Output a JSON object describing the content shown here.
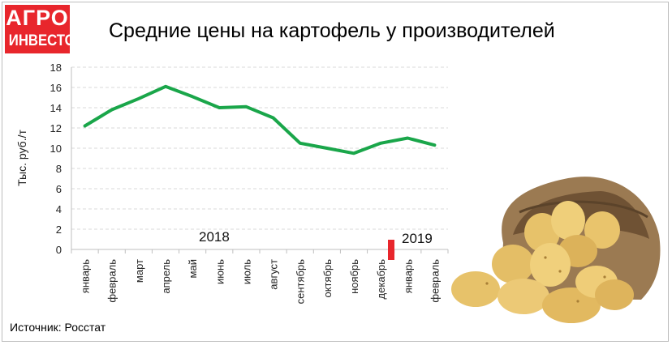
{
  "logo": {
    "line1": "АГРО",
    "line2": "ИНВЕСТОР"
  },
  "source": "Источник: Росстат",
  "colors": {
    "line": "#1aa64a",
    "marker": "#e8262c",
    "grid": "#d9d9d9",
    "logo_bg": "#e8262c"
  },
  "chart_data": {
    "type": "line",
    "title": "Средние цены на картофель у производителей",
    "ylabel": "Тыс. руб./т",
    "xlabel": "",
    "categories": [
      "январь",
      "февраль",
      "март",
      "апрель",
      "май",
      "июнь",
      "июль",
      "август",
      "сентябрь",
      "октябрь",
      "ноябрь",
      "декабрь",
      "январь",
      "февраль"
    ],
    "series": [
      {
        "values": [
          12.2,
          13.8,
          14.9,
          16.1,
          15.1,
          14.0,
          14.1,
          13.0,
          10.5,
          10.0,
          9.5,
          10.5,
          11.0,
          10.3
        ]
      }
    ],
    "ylim": [
      0,
      18
    ],
    "yticks": [
      0,
      2,
      4,
      6,
      8,
      10,
      12,
      14,
      16,
      18
    ],
    "grid": true,
    "year_labels": [
      "2018",
      "2019"
    ],
    "legend": "none"
  },
  "decoration": "potato-sack-icon"
}
